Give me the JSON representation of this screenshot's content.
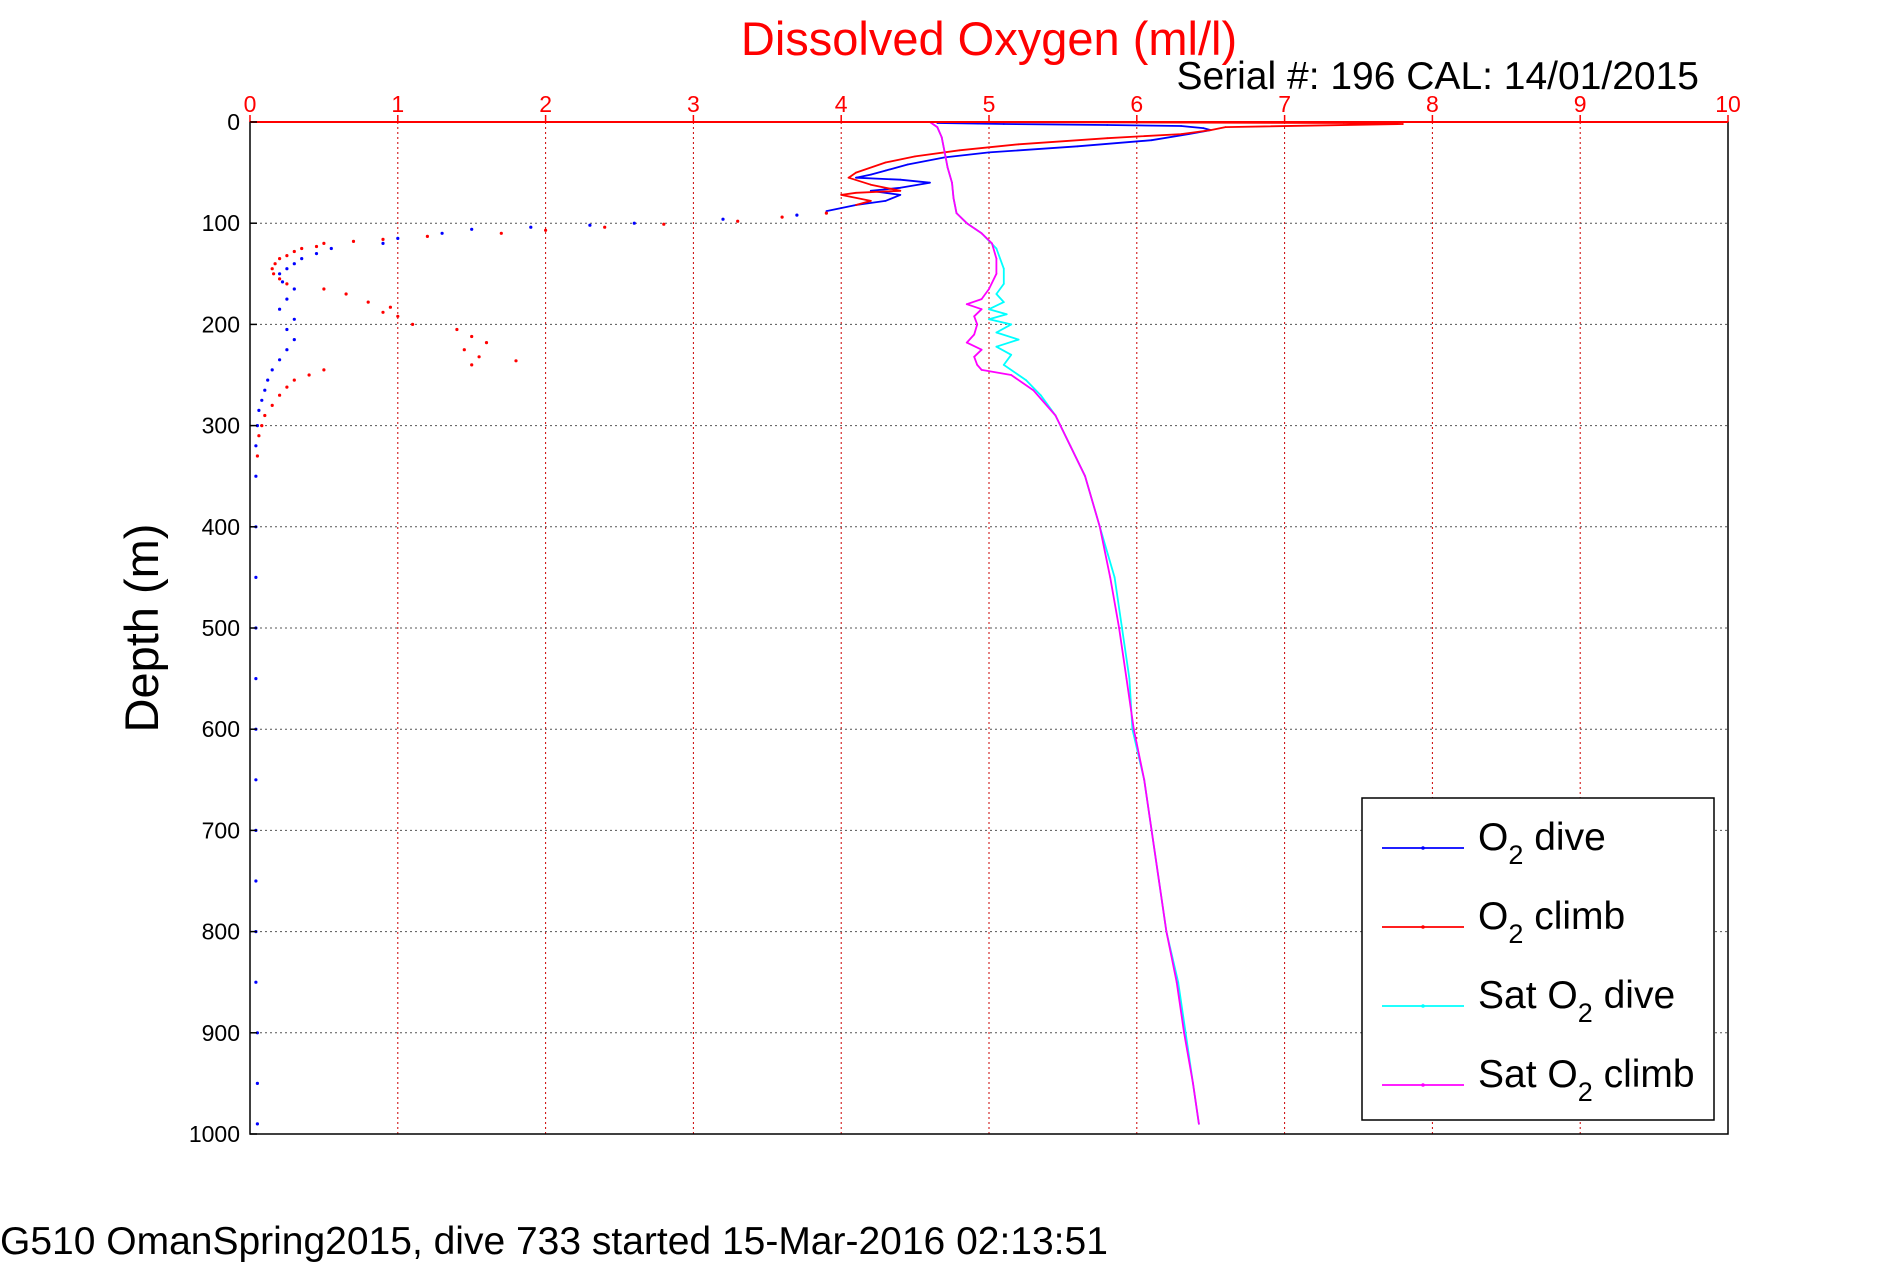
{
  "chart_data": {
    "type": "line",
    "title": "Dissolved Oxygen (ml/l)",
    "subtitle": "Serial #: 196  CAL: 14/01/2015",
    "xlabel": "",
    "ylabel": "Depth (m)",
    "caption": "G510 OmanSpring2015, dive 733 started 15-Mar-2016 02:13:51",
    "xlim": [
      0,
      10
    ],
    "ylim": [
      0,
      1000
    ],
    "y_reversed": true,
    "x_axis_position": "top",
    "grid": true,
    "xticks": [
      "0",
      "1",
      "2",
      "3",
      "4",
      "5",
      "6",
      "7",
      "8",
      "9",
      "10"
    ],
    "yticks": [
      "0",
      "100",
      "200",
      "300",
      "400",
      "500",
      "600",
      "700",
      "800",
      "900",
      "1000"
    ],
    "legend": {
      "placement": "bottom-right",
      "entries": [
        {
          "prefix": "O",
          "sub": "2",
          "suffix": " dive"
        },
        {
          "prefix": "O",
          "sub": "2",
          "suffix": " climb"
        },
        {
          "prefix": "Sat O",
          "sub": "2",
          "suffix": " dive"
        },
        {
          "prefix": "Sat O",
          "sub": "2",
          "suffix": " climb"
        }
      ]
    },
    "series": [
      {
        "color": "#0000ff",
        "style": "line",
        "points": [
          [
            4.65,
            1
          ],
          [
            5.1,
            2
          ],
          [
            5.8,
            3
          ],
          [
            6.3,
            4
          ],
          [
            6.45,
            6
          ],
          [
            6.5,
            8
          ],
          [
            6.35,
            12
          ],
          [
            6.1,
            18
          ],
          [
            5.6,
            24
          ],
          [
            5.0,
            30
          ],
          [
            4.7,
            35
          ],
          [
            4.45,
            42
          ],
          [
            4.3,
            48
          ],
          [
            4.2,
            52
          ],
          [
            4.1,
            55
          ],
          [
            4.4,
            57
          ],
          [
            4.6,
            60
          ],
          [
            4.4,
            65
          ],
          [
            4.2,
            68
          ],
          [
            4.4,
            72
          ],
          [
            4.3,
            78
          ],
          [
            4.1,
            82
          ],
          [
            3.9,
            88
          ]
        ]
      },
      {
        "color": "#0000ff",
        "style": "dots",
        "points": [
          [
            3.7,
            92
          ],
          [
            3.2,
            96
          ],
          [
            2.6,
            100
          ],
          [
            2.3,
            102
          ],
          [
            1.9,
            104
          ],
          [
            1.5,
            106
          ],
          [
            1.3,
            110
          ],
          [
            1.0,
            115
          ],
          [
            0.9,
            120
          ],
          [
            0.55,
            125
          ],
          [
            0.45,
            130
          ],
          [
            0.35,
            135
          ],
          [
            0.3,
            140
          ],
          [
            0.25,
            145
          ],
          [
            0.2,
            150
          ],
          [
            0.22,
            158
          ],
          [
            0.3,
            165
          ],
          [
            0.25,
            175
          ],
          [
            0.2,
            185
          ],
          [
            0.3,
            195
          ],
          [
            0.25,
            205
          ],
          [
            0.3,
            215
          ],
          [
            0.25,
            225
          ],
          [
            0.2,
            235
          ],
          [
            0.15,
            245
          ],
          [
            0.12,
            255
          ],
          [
            0.1,
            265
          ],
          [
            0.08,
            275
          ],
          [
            0.06,
            285
          ],
          [
            0.05,
            300
          ],
          [
            0.04,
            320
          ],
          [
            0.04,
            350
          ],
          [
            0.04,
            400
          ],
          [
            0.04,
            450
          ],
          [
            0.04,
            500
          ],
          [
            0.04,
            550
          ],
          [
            0.04,
            600
          ],
          [
            0.04,
            650
          ],
          [
            0.04,
            700
          ],
          [
            0.04,
            750
          ],
          [
            0.04,
            800
          ],
          [
            0.04,
            850
          ],
          [
            0.05,
            900
          ],
          [
            0.05,
            950
          ],
          [
            0.05,
            990
          ]
        ]
      },
      {
        "color": "#ff0000",
        "style": "line",
        "points": [
          [
            4.6,
            0
          ],
          [
            7.4,
            1
          ],
          [
            7.8,
            2
          ],
          [
            6.6,
            5
          ],
          [
            6.5,
            8
          ],
          [
            6.3,
            12
          ],
          [
            5.8,
            16
          ],
          [
            5.2,
            22
          ],
          [
            4.8,
            28
          ],
          [
            4.5,
            34
          ],
          [
            4.3,
            40
          ],
          [
            4.1,
            50
          ],
          [
            4.05,
            55
          ],
          [
            4.2,
            62
          ],
          [
            4.4,
            68
          ],
          [
            4.1,
            70
          ],
          [
            4.0,
            72
          ],
          [
            4.2,
            78
          ],
          [
            4.1,
            82
          ]
        ]
      },
      {
        "color": "#ff0000",
        "style": "dots",
        "points": [
          [
            3.9,
            90
          ],
          [
            3.6,
            94
          ],
          [
            3.3,
            98
          ],
          [
            2.8,
            101
          ],
          [
            2.4,
            104
          ],
          [
            2.0,
            107
          ],
          [
            1.7,
            110
          ],
          [
            1.2,
            113
          ],
          [
            0.9,
            116
          ],
          [
            0.7,
            118
          ],
          [
            0.5,
            120
          ],
          [
            0.45,
            123
          ],
          [
            0.35,
            125
          ],
          [
            0.3,
            128
          ],
          [
            0.25,
            132
          ],
          [
            0.2,
            135
          ],
          [
            0.17,
            140
          ],
          [
            0.15,
            145
          ],
          [
            0.16,
            150
          ],
          [
            0.2,
            155
          ],
          [
            0.25,
            160
          ],
          [
            0.5,
            165
          ],
          [
            0.65,
            170
          ],
          [
            0.8,
            178
          ],
          [
            0.95,
            183
          ],
          [
            0.9,
            188
          ],
          [
            1.0,
            192
          ],
          [
            1.1,
            200
          ],
          [
            1.4,
            205
          ],
          [
            1.5,
            212
          ],
          [
            1.6,
            218
          ],
          [
            1.45,
            225
          ],
          [
            1.55,
            232
          ],
          [
            1.8,
            236
          ],
          [
            1.5,
            240
          ],
          [
            0.5,
            245
          ],
          [
            0.4,
            250
          ],
          [
            0.3,
            255
          ],
          [
            0.25,
            262
          ],
          [
            0.2,
            270
          ],
          [
            0.15,
            280
          ],
          [
            0.1,
            290
          ],
          [
            0.08,
            300
          ],
          [
            0.06,
            310
          ],
          [
            0.05,
            330
          ]
        ]
      },
      {
        "color": "#00ffff",
        "style": "line",
        "points": [
          [
            4.6,
            0
          ],
          [
            4.65,
            5
          ],
          [
            4.68,
            15
          ],
          [
            4.7,
            30
          ],
          [
            4.72,
            45
          ],
          [
            4.75,
            60
          ],
          [
            4.76,
            75
          ],
          [
            4.78,
            90
          ],
          [
            4.85,
            100
          ],
          [
            4.95,
            110
          ],
          [
            5.05,
            125
          ],
          [
            5.1,
            145
          ],
          [
            5.1,
            160
          ],
          [
            5.05,
            170
          ],
          [
            5.1,
            178
          ],
          [
            5.0,
            185
          ],
          [
            5.12,
            190
          ],
          [
            5.0,
            195
          ],
          [
            5.15,
            200
          ],
          [
            5.05,
            208
          ],
          [
            5.2,
            215
          ],
          [
            5.05,
            222
          ],
          [
            5.15,
            230
          ],
          [
            5.1,
            240
          ],
          [
            5.25,
            255
          ],
          [
            5.35,
            270
          ],
          [
            5.45,
            290
          ],
          [
            5.55,
            320
          ],
          [
            5.65,
            350
          ],
          [
            5.75,
            400
          ],
          [
            5.85,
            450
          ],
          [
            5.9,
            500
          ],
          [
            5.95,
            550
          ],
          [
            5.97,
            600
          ],
          [
            6.05,
            650
          ],
          [
            6.1,
            700
          ],
          [
            6.15,
            750
          ],
          [
            6.2,
            800
          ],
          [
            6.28,
            850
          ],
          [
            6.33,
            900
          ],
          [
            6.38,
            950
          ],
          [
            6.42,
            990
          ]
        ]
      },
      {
        "color": "#ff00ff",
        "style": "line",
        "points": [
          [
            4.6,
            0
          ],
          [
            4.65,
            5
          ],
          [
            4.68,
            15
          ],
          [
            4.7,
            30
          ],
          [
            4.72,
            45
          ],
          [
            4.75,
            60
          ],
          [
            4.76,
            75
          ],
          [
            4.78,
            90
          ],
          [
            4.85,
            100
          ],
          [
            4.95,
            110
          ],
          [
            5.02,
            120
          ],
          [
            5.05,
            135
          ],
          [
            5.05,
            150
          ],
          [
            5.0,
            165
          ],
          [
            4.95,
            175
          ],
          [
            4.85,
            180
          ],
          [
            4.95,
            185
          ],
          [
            4.9,
            192
          ],
          [
            4.92,
            200
          ],
          [
            4.9,
            210
          ],
          [
            4.85,
            218
          ],
          [
            4.95,
            225
          ],
          [
            4.9,
            232
          ],
          [
            4.92,
            240
          ],
          [
            4.95,
            245
          ],
          [
            5.15,
            250
          ],
          [
            5.3,
            265
          ],
          [
            5.45,
            290
          ],
          [
            5.55,
            320
          ],
          [
            5.65,
            350
          ],
          [
            5.75,
            400
          ],
          [
            5.82,
            450
          ],
          [
            5.88,
            500
          ],
          [
            5.93,
            550
          ],
          [
            5.98,
            600
          ],
          [
            6.05,
            650
          ],
          [
            6.1,
            700
          ],
          [
            6.15,
            750
          ],
          [
            6.2,
            800
          ],
          [
            6.27,
            850
          ],
          [
            6.32,
            900
          ],
          [
            6.38,
            950
          ],
          [
            6.42,
            990
          ]
        ]
      }
    ]
  },
  "colors": {
    "grid": "#cc0000",
    "axis_x": "#ff0000",
    "axis_y": "#000000",
    "title": "#ff0000",
    "O2_dive": "#0000ff",
    "O2_climb": "#ff0000",
    "Sat_O2_dive": "#00ffff",
    "Sat_O2_climb": "#ff00ff"
  }
}
